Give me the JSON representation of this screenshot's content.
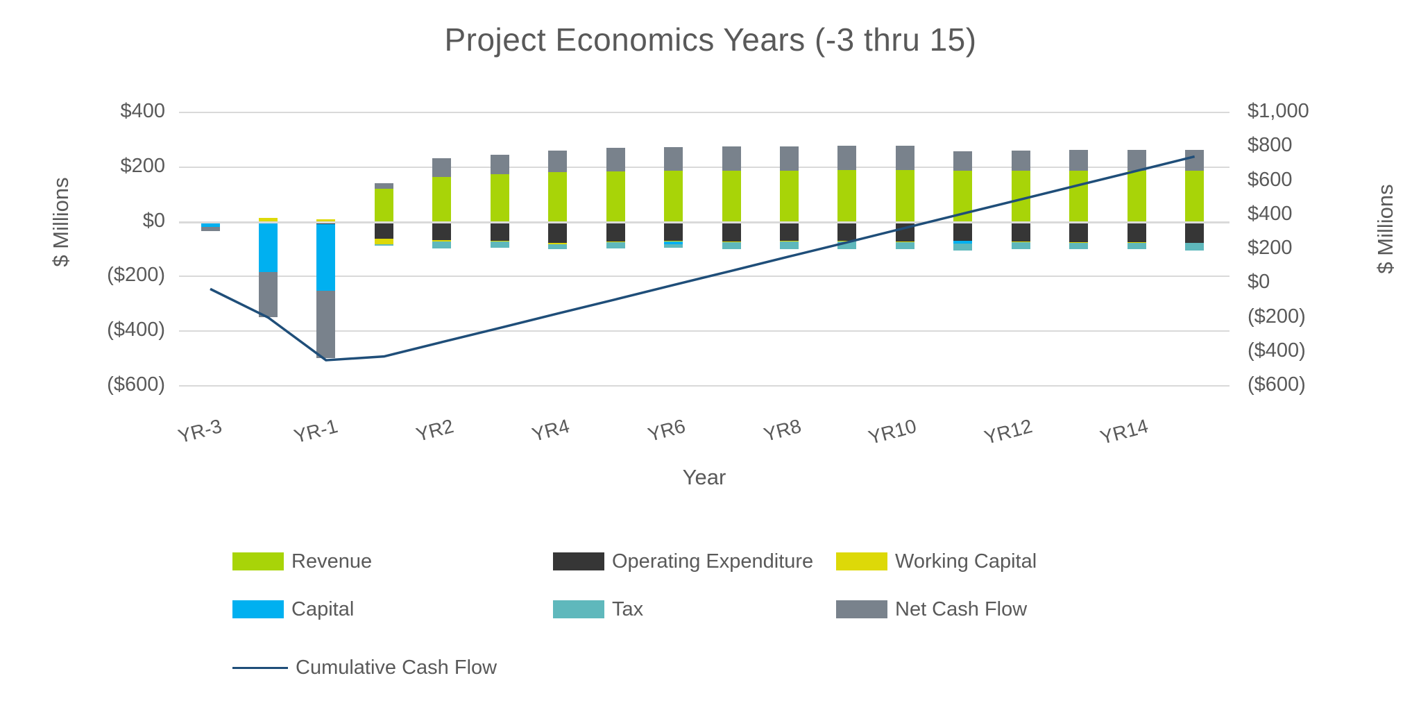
{
  "chart_data": {
    "type": "bar",
    "subtype": "stacked-bar-with-line-combo",
    "title": "Project Economics Years (-3 thru 15)",
    "background_color": "#ffffff",
    "text_color": "#595959",
    "gridline_color": "#d9d9d9",
    "x_axis": {
      "title": "Year",
      "categories": [
        "YR-3",
        "YR-2",
        "YR-1",
        "YR1",
        "YR2",
        "YR3",
        "YR4",
        "YR5",
        "YR6",
        "YR7",
        "YR8",
        "YR9",
        "YR10",
        "YR11",
        "YR12",
        "YR13",
        "YR14",
        "YR15"
      ],
      "shown_tick_labels": [
        "YR-3",
        "YR-1",
        "YR2",
        "YR4",
        "YR6",
        "YR8",
        "YR10",
        "YR12",
        "YR14"
      ],
      "label_every_nth": 2
    },
    "left_axis": {
      "title": "$ Millions",
      "range": [
        -600,
        400
      ],
      "tick_values": [
        400,
        200,
        0,
        -200,
        -400,
        -600
      ],
      "tick_labels": [
        "$400",
        "$200",
        "$0",
        "($200)",
        "($400)",
        "($600)"
      ]
    },
    "right_axis": {
      "title": "$ Millions",
      "range": [
        -600,
        1000
      ],
      "tick_values": [
        1000,
        800,
        600,
        400,
        200,
        0,
        -200,
        -400,
        -600
      ],
      "tick_labels": [
        "$1,000",
        "$800",
        "$600",
        "$400",
        "$200",
        "$0",
        "($200)",
        "($400)",
        "($600)"
      ]
    },
    "series": [
      {
        "name": "Revenue",
        "color": "#a8d408",
        "values": [
          0,
          0,
          0,
          120,
          165,
          175,
          182,
          185,
          188,
          188,
          188,
          190,
          190,
          187,
          188,
          188,
          188,
          186
        ]
      },
      {
        "name": "Operating Expenditure",
        "color": "#363636",
        "values": [
          0,
          0,
          -8,
          -62,
          -68,
          -70,
          -77,
          -73,
          -70,
          -72,
          -70,
          -70,
          -72,
          -70,
          -72,
          -74,
          -74,
          -76
        ]
      },
      {
        "name": "Working Capital",
        "color": "#ddd908",
        "values": [
          0,
          15,
          8,
          -20,
          -4,
          -3,
          -4,
          -2,
          -3,
          -2,
          -2,
          -2,
          -2,
          0,
          -3,
          -2,
          -2,
          -2
        ]
      },
      {
        "name": "Capital",
        "color": "#00b0f0",
        "values": [
          -18,
          -185,
          -245,
          0,
          0,
          0,
          0,
          0,
          -8,
          0,
          0,
          0,
          0,
          -10,
          0,
          0,
          0,
          0
        ]
      },
      {
        "name": "Tax",
        "color": "#5fb8bc",
        "values": [
          0,
          0,
          0,
          -5,
          -25,
          -22,
          -20,
          -23,
          -15,
          -25,
          -27,
          -27,
          -25,
          -25,
          -25,
          -25,
          -25,
          -28
        ]
      },
      {
        "name": "Net Cash Flow",
        "color": "#79828c",
        "values": [
          -15,
          -165,
          -245,
          20,
          67,
          70,
          78,
          85,
          85,
          87,
          87,
          88,
          87,
          70,
          73,
          75,
          75,
          76
        ]
      }
    ],
    "line_series": {
      "name": "Cumulative Cash Flow",
      "color": "#1f4e79",
      "axis": "right",
      "values": [
        -33,
        -200,
        -450,
        -428,
        -344,
        -261,
        -177,
        -94,
        -10,
        73,
        157,
        240,
        324,
        408,
        491,
        575,
        658,
        742
      ]
    },
    "legend_position": "bottom"
  }
}
